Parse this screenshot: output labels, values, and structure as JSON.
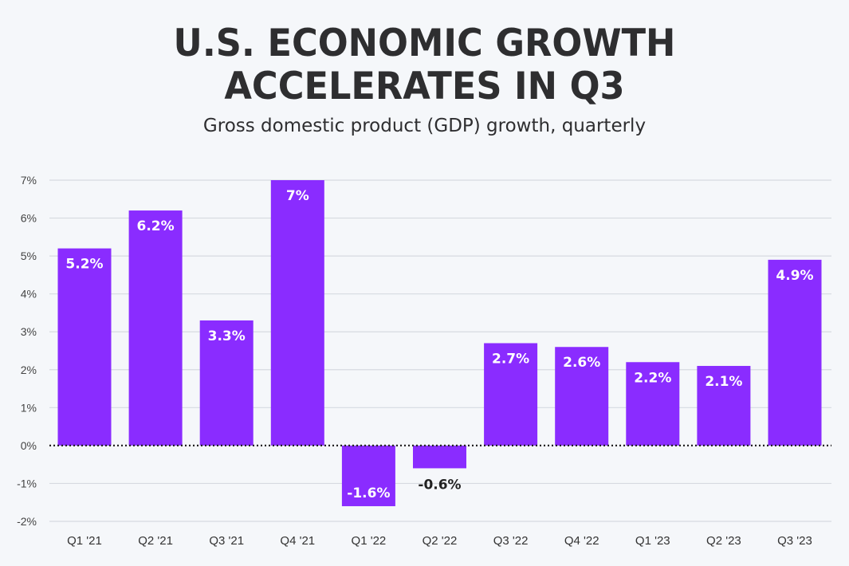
{
  "chart_data": {
    "type": "bar",
    "title": "U.S. ECONOMIC GROWTH ACCELERATES IN Q3",
    "title_lines": [
      "U.S. ECONOMIC GROWTH",
      "ACCELERATES IN Q3"
    ],
    "subtitle": "Gross domestic product (GDP) growth, quarterly",
    "xlabel": "",
    "ylabel": "",
    "ylim": [
      -2,
      7
    ],
    "yticks": [
      7,
      6,
      5,
      4,
      3,
      2,
      1,
      0,
      -1,
      -2
    ],
    "ytick_labels": [
      "7%",
      "6%",
      "5%",
      "4%",
      "3%",
      "2%",
      "1%",
      "0%",
      "-1%",
      "-2%"
    ],
    "categories": [
      "Q1 '21",
      "Q2 '21",
      "Q3 '21",
      "Q4 '21",
      "Q1 '22",
      "Q2 '22",
      "Q3 '22",
      "Q4 '22",
      "Q1 '23",
      "Q2 '23",
      "Q3 '23"
    ],
    "values": [
      5.2,
      6.2,
      3.3,
      7,
      -1.6,
      -0.6,
      2.7,
      2.6,
      2.2,
      2.1,
      4.9
    ],
    "data_labels": [
      "5.2%",
      "6.2%",
      "3.3%",
      "7%",
      "-1.6%",
      "-0.6%",
      "2.7%",
      "2.6%",
      "2.2%",
      "2.1%",
      "4.9%"
    ],
    "grid": true,
    "legend": "none",
    "bar_color": "#8a2cff",
    "grid_color": "#d6dae0",
    "zero_line": "dotted"
  }
}
